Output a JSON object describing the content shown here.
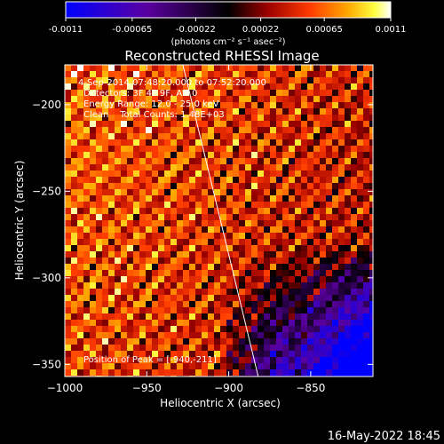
{
  "colorbar": {
    "tick_labels": [
      "-0.0011",
      "-0.00065",
      "-0.00022",
      "0.00022",
      "0.00065",
      "0.0011"
    ],
    "tick_values": [
      -0.0011,
      -0.00065,
      -0.00022,
      0.00022,
      0.00065,
      0.0011
    ],
    "range": [
      -0.0011,
      0.0011
    ],
    "units_label": "(photons cm⁻² s⁻¹ asec⁻²)",
    "colors": [
      "#0000ff",
      "#5a00a0",
      "#000000",
      "#9a0000",
      "#ff3a00",
      "#ffaa00",
      "#ffff40",
      "#ffffff"
    ]
  },
  "chart_data": {
    "type": "heatmap",
    "title": "Reconstructed RHESSI Image",
    "xlabel": "Heliocentric X (arcsec)",
    "ylabel": "Heliocentric Y (arcsec)",
    "xlim": [
      -1000,
      -812
    ],
    "ylim": [
      -357,
      -177
    ],
    "x_ticks": [
      -1000,
      -950,
      -900,
      -850
    ],
    "x_tick_labels": [
      "−1000",
      "−950",
      "−900",
      "−850"
    ],
    "y_ticks": [
      -350,
      -300,
      -250,
      -200
    ],
    "y_tick_labels": [
      "−350",
      "−300",
      "−250",
      "−200"
    ],
    "annotations": [
      "4-Sep-2014 07:48:20.000 to 07:52:20.000",
      "Detectors: 3F 4F 9F, Att 0",
      "Energy Range: 12.0 - 25.0 keV",
      "Clean    Total Counts: 1.48E+03"
    ],
    "peak_label": "Position of Peak = [-940,-211]",
    "peak_position": [
      -940,
      -211
    ],
    "limb_line": [
      [
        -928,
        -177
      ],
      [
        -882,
        -357
      ]
    ]
  },
  "footer": {
    "timestamp": "16-May-2022 18:45"
  }
}
